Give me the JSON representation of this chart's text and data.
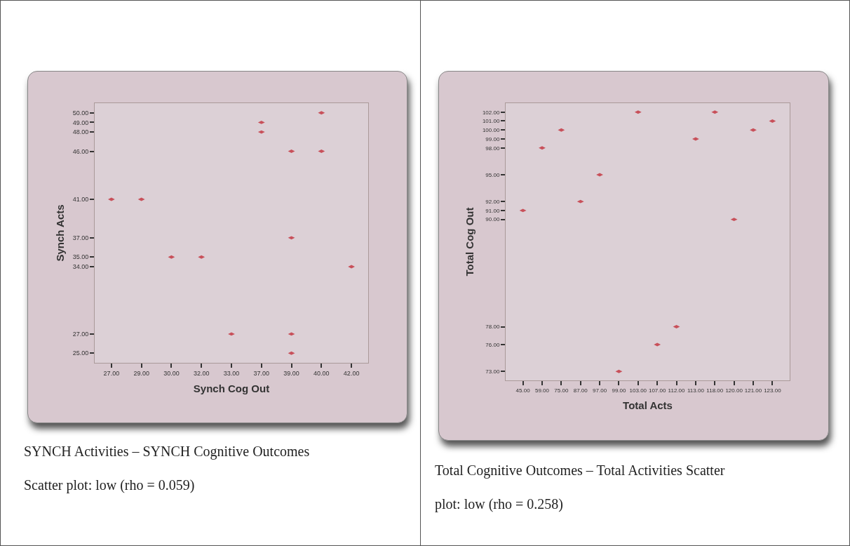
{
  "chart_data": [
    {
      "type": "scatter",
      "xlabel": "Synch Cog Out",
      "ylabel": "Synch Acts",
      "categories": [
        "27.00",
        "29.00",
        "30.00",
        "32.00",
        "33.00",
        "37.00",
        "39.00",
        "40.00",
        "42.00"
      ],
      "ylim": [
        24,
        51
      ],
      "yticks": [
        {
          "value": 25,
          "label": "25.00"
        },
        {
          "value": 27,
          "label": "27.00"
        },
        {
          "value": 34,
          "label": "34.00"
        },
        {
          "value": 35,
          "label": "35.00"
        },
        {
          "value": 37,
          "label": "37.00"
        },
        {
          "value": 41,
          "label": "41.00"
        },
        {
          "value": 46,
          "label": "46.00"
        },
        {
          "value": 48,
          "label": "48.00"
        },
        {
          "value": 49,
          "label": "49.00"
        },
        {
          "value": 50,
          "label": "50.00"
        }
      ],
      "series": [
        {
          "color": "#c8505a",
          "x": [
            "40.00",
            "37.00",
            "37.00",
            "39.00",
            "40.00",
            "27.00",
            "29.00",
            "39.00",
            "30.00",
            "32.00",
            "42.00",
            "33.00",
            "39.00",
            "39.00"
          ],
          "values": [
            50,
            49,
            48,
            46,
            46,
            41,
            41,
            37,
            35,
            35,
            34,
            27,
            27,
            25
          ]
        }
      ],
      "annotations": [
        "SYNCH Activities – SYNCH Cognitive Outcomes",
        "Scatter plot: low (rho = 0.059)"
      ]
    },
    {
      "type": "scatter",
      "xlabel": "Total Acts",
      "ylabel": "Total Cog Out",
      "categories": [
        "45.00",
        "59.00",
        "75.00",
        "87.00",
        "97.00",
        "99.00",
        "103.00",
        "107.00",
        "112.00",
        "113.00",
        "118.00",
        "120.00",
        "121.00",
        "123.00"
      ],
      "ylim": [
        72,
        103
      ],
      "yticks": [
        {
          "value": 73,
          "label": "73.00"
        },
        {
          "value": 76,
          "label": "76.00"
        },
        {
          "value": 78,
          "label": "78.00"
        },
        {
          "value": 90,
          "label": "90.00"
        },
        {
          "value": 91,
          "label": "91.00"
        },
        {
          "value": 92,
          "label": "92.00"
        },
        {
          "value": 95,
          "label": "95.00"
        },
        {
          "value": 98,
          "label": "98.00"
        },
        {
          "value": 99,
          "label": "99.00"
        },
        {
          "value": 100,
          "label": "100.00"
        },
        {
          "value": 101,
          "label": "101.00"
        },
        {
          "value": 102,
          "label": "102.00"
        }
      ],
      "series": [
        {
          "color": "#c8505a",
          "x": [
            "45.00",
            "59.00",
            "75.00",
            "87.00",
            "97.00",
            "99.00",
            "103.00",
            "107.00",
            "112.00",
            "113.00",
            "118.00",
            "120.00",
            "121.00",
            "123.00"
          ],
          "values": [
            91,
            98,
            100,
            92,
            95,
            73,
            102,
            76,
            78,
            99,
            102,
            90,
            100,
            101
          ]
        }
      ],
      "annotations": [
        "Total Cognitive Outcomes – Total Activities Scatter",
        "plot: low (rho = 0.258)"
      ]
    }
  ]
}
